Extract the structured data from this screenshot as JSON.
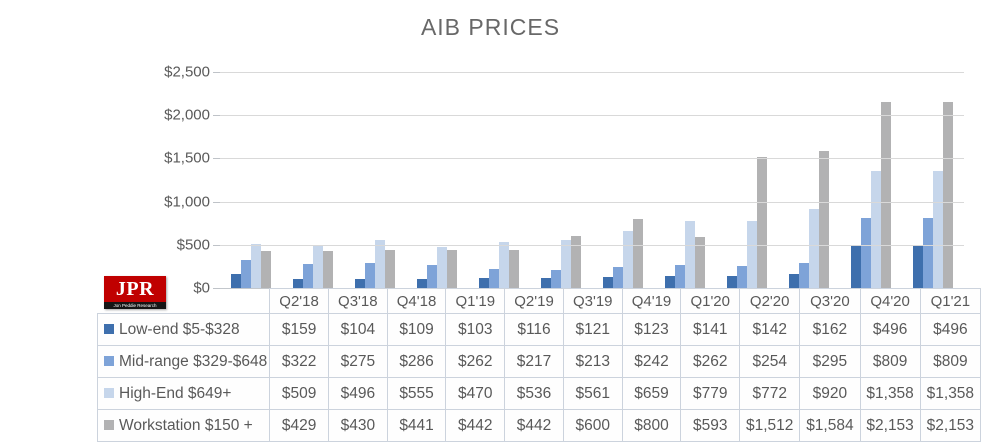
{
  "title": "AIB PRICES",
  "logo": {
    "text": "JPR",
    "subtext": "Jon Peddie Research"
  },
  "colors": {
    "series": [
      "#3e6fad",
      "#7ea3d8",
      "#c6d6eb",
      "#b2b2b3"
    ],
    "gridline": "#d9d9d9",
    "axis_line": "#c3c7cc",
    "table_border": "#ccd3dd",
    "text": "#595959",
    "title_text": "#686868",
    "logo_red": "#c00000",
    "logo_black": "#151515"
  },
  "chart_data": {
    "type": "bar",
    "title": "AIB PRICES",
    "xlabel": "",
    "ylabel": "",
    "categories": [
      "Q2'18",
      "Q3'18",
      "Q4'18",
      "Q1'19",
      "Q2'19",
      "Q3'19",
      "Q4'19",
      "Q1'20",
      "Q2'20",
      "Q3'20",
      "Q4'20",
      "Q1'21"
    ],
    "series": [
      {
        "name": "Low-end $5-$328",
        "color": "#3e6fad",
        "values": [
          159,
          104,
          109,
          103,
          116,
          121,
          123,
          141,
          142,
          162,
          496,
          496
        ],
        "formatted": [
          "$159",
          "$104",
          "$109",
          "$103",
          "$116",
          "$121",
          "$123",
          "$141",
          "$142",
          "$162",
          "$496",
          "$496"
        ]
      },
      {
        "name": "Mid-range $329-$648",
        "color": "#7ea3d8",
        "values": [
          322,
          275,
          286,
          262,
          217,
          213,
          242,
          262,
          254,
          295,
          809,
          809
        ],
        "formatted": [
          "$322",
          "$275",
          "$286",
          "$262",
          "$217",
          "$213",
          "$242",
          "$262",
          "$254",
          "$295",
          "$809",
          "$809"
        ]
      },
      {
        "name": "High-End $649+",
        "color": "#c6d6eb",
        "values": [
          509,
          496,
          555,
          470,
          536,
          561,
          659,
          779,
          772,
          920,
          1358,
          1358
        ],
        "formatted": [
          "$509",
          "$496",
          "$555",
          "$470",
          "$536",
          "$561",
          "$659",
          "$779",
          "$772",
          "$920",
          "$1,358",
          "$1,358"
        ]
      },
      {
        "name": "Workstation $150 +",
        "color": "#b2b2b3",
        "values": [
          429,
          430,
          441,
          442,
          442,
          600,
          800,
          593,
          1512,
          1584,
          2153,
          2153
        ],
        "formatted": [
          "$429",
          "$430",
          "$441",
          "$442",
          "$442",
          "$600",
          "$800",
          "$593",
          "$1,512",
          "$1,584",
          "$2,153",
          "$2,153"
        ]
      }
    ],
    "ylim": [
      0,
      2500
    ],
    "ytick_step": 500,
    "yticks": [
      "$0",
      "$500",
      "$1,000",
      "$1,500",
      "$2,000",
      "$2,500"
    ],
    "grid": true,
    "legend_position": "left column of data table"
  }
}
